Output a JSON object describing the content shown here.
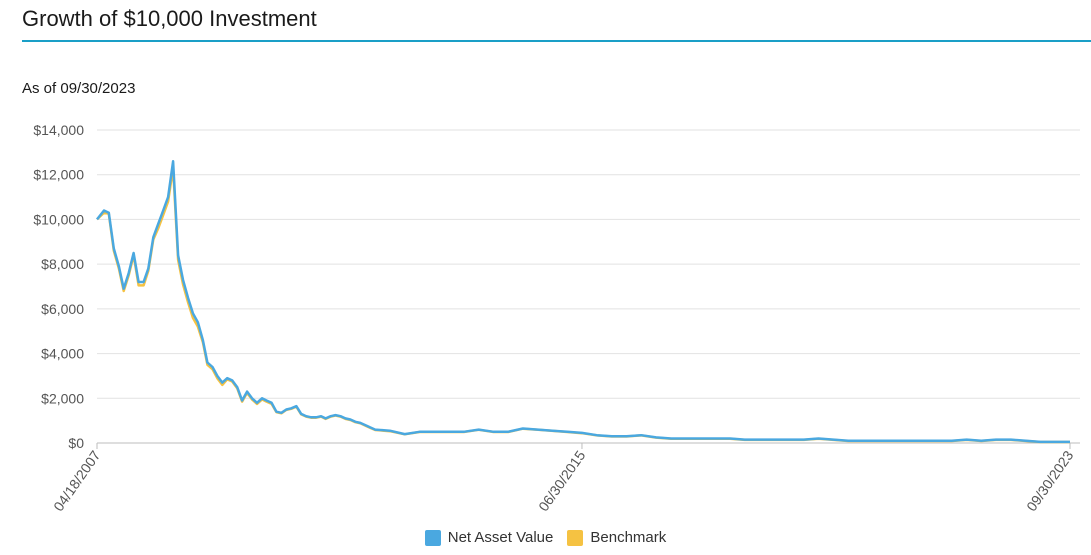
{
  "header": {
    "title": "Growth of $10,000 Investment",
    "as_of": "As of 09/30/2023"
  },
  "colors": {
    "accent": "#1a9fc7",
    "nav_series": "#4aa8e0",
    "benchmark_series": "#f5c242",
    "grid": "#e2e2e2"
  },
  "chart_data": {
    "type": "line",
    "title": "",
    "xlabel": "",
    "ylabel": "",
    "ylim": [
      0,
      14000
    ],
    "y_ticks": [
      0,
      2000,
      4000,
      6000,
      8000,
      10000,
      12000,
      14000
    ],
    "y_tick_labels": [
      "$0",
      "$2,000",
      "$4,000",
      "$6,000",
      "$8,000",
      "$10,000",
      "$12,000",
      "$14,000"
    ],
    "x_tick_labels": [
      "04/18/2007",
      "06/30/2015",
      "09/30/2023"
    ],
    "x_range": [
      "04/18/2007",
      "09/30/2023"
    ],
    "grid": true,
    "legend_placement": "bottom-center",
    "x_dates": [
      "2007-04-18",
      "2007-05-31",
      "2007-06-30",
      "2007-07-31",
      "2007-08-31",
      "2007-09-30",
      "2007-10-31",
      "2007-11-30",
      "2007-12-31",
      "2008-01-31",
      "2008-02-29",
      "2008-03-31",
      "2008-04-30",
      "2008-05-31",
      "2008-06-30",
      "2008-07-31",
      "2008-08-31",
      "2008-09-30",
      "2008-10-31",
      "2008-11-30",
      "2008-12-31",
      "2009-01-31",
      "2009-02-28",
      "2009-03-31",
      "2009-04-30",
      "2009-05-31",
      "2009-06-30",
      "2009-07-31",
      "2009-08-31",
      "2009-09-30",
      "2009-10-31",
      "2009-11-30",
      "2009-12-31",
      "2010-01-31",
      "2010-02-28",
      "2010-03-31",
      "2010-04-30",
      "2010-05-31",
      "2010-06-30",
      "2010-07-31",
      "2010-08-31",
      "2010-09-30",
      "2010-10-31",
      "2010-11-30",
      "2010-12-31",
      "2011-01-31",
      "2011-02-28",
      "2011-03-31",
      "2011-04-30",
      "2011-05-31",
      "2011-06-30",
      "2011-07-31",
      "2011-08-31",
      "2011-09-30",
      "2011-10-31",
      "2011-11-30",
      "2011-12-31",
      "2012-03-31",
      "2012-06-30",
      "2012-09-30",
      "2012-12-31",
      "2013-03-31",
      "2013-06-30",
      "2013-09-30",
      "2013-12-31",
      "2014-03-31",
      "2014-06-30",
      "2014-09-30",
      "2014-12-31",
      "2015-03-31",
      "2015-06-30",
      "2015-09-30",
      "2015-12-31",
      "2016-03-31",
      "2016-06-30",
      "2016-09-30",
      "2016-12-31",
      "2017-03-31",
      "2017-06-30",
      "2017-09-30",
      "2017-12-31",
      "2018-03-31",
      "2018-06-30",
      "2018-09-30",
      "2018-12-31",
      "2019-03-31",
      "2019-06-30",
      "2019-09-30",
      "2019-12-31",
      "2020-03-31",
      "2020-06-30",
      "2020-09-30",
      "2020-12-31",
      "2021-03-31",
      "2021-06-30",
      "2021-09-30",
      "2021-12-31",
      "2022-03-31",
      "2022-06-30",
      "2022-09-30",
      "2022-12-31",
      "2023-03-31",
      "2023-06-30",
      "2023-09-30"
    ],
    "series": [
      {
        "name": "Net Asset Value",
        "values": [
          10000,
          10400,
          10300,
          8700,
          7900,
          6900,
          7600,
          8500,
          7200,
          7200,
          7800,
          9200,
          9800,
          10400,
          11000,
          12600,
          8400,
          7300,
          6500,
          5800,
          5400,
          4600,
          3600,
          3400,
          3000,
          2700,
          2900,
          2800,
          2500,
          1900,
          2300,
          2000,
          1800,
          2000,
          1900,
          1800,
          1400,
          1350,
          1500,
          1550,
          1650,
          1300,
          1200,
          1150,
          1150,
          1200,
          1100,
          1200,
          1250,
          1200,
          1100,
          1050,
          950,
          900,
          800,
          700,
          600,
          550,
          400,
          500,
          500,
          500,
          500,
          600,
          500,
          500,
          650,
          600,
          550,
          500,
          450,
          350,
          300,
          300,
          350,
          250,
          200,
          200,
          200,
          200,
          200,
          150,
          150,
          150,
          150,
          150,
          200,
          150,
          100,
          100,
          100,
          100,
          100,
          100,
          100,
          100,
          150,
          100,
          150,
          150,
          100,
          50,
          50,
          50
        ],
        "color": "#4aa8e0"
      },
      {
        "name": "Benchmark",
        "values": [
          10000,
          10300,
          10250,
          8600,
          7800,
          6800,
          7500,
          8400,
          7050,
          7050,
          7700,
          9100,
          9600,
          10200,
          10800,
          12300,
          8200,
          7100,
          6300,
          5600,
          5200,
          4500,
          3500,
          3300,
          2900,
          2600,
          2850,
          2750,
          2450,
          1850,
          2250,
          1950,
          1750,
          1950,
          1850,
          1750,
          1380,
          1330,
          1480,
          1530,
          1630,
          1280,
          1180,
          1130,
          1130,
          1180,
          1080,
          1180,
          1230,
          1180,
          1080,
          1030,
          930,
          880,
          780,
          680,
          580,
          530,
          390,
          490,
          490,
          490,
          490,
          590,
          490,
          490,
          640,
          590,
          540,
          490,
          440,
          340,
          290,
          290,
          340,
          240,
          190,
          190,
          190,
          190,
          190,
          140,
          140,
          140,
          140,
          140,
          190,
          140,
          90,
          90,
          90,
          90,
          90,
          90,
          90,
          90,
          140,
          90,
          140,
          140,
          90,
          45,
          45,
          45
        ],
        "color": "#f5c242"
      }
    ]
  },
  "legend": {
    "items": [
      {
        "label": "Net Asset Value",
        "color": "#4aa8e0"
      },
      {
        "label": "Benchmark",
        "color": "#f5c242"
      }
    ]
  }
}
